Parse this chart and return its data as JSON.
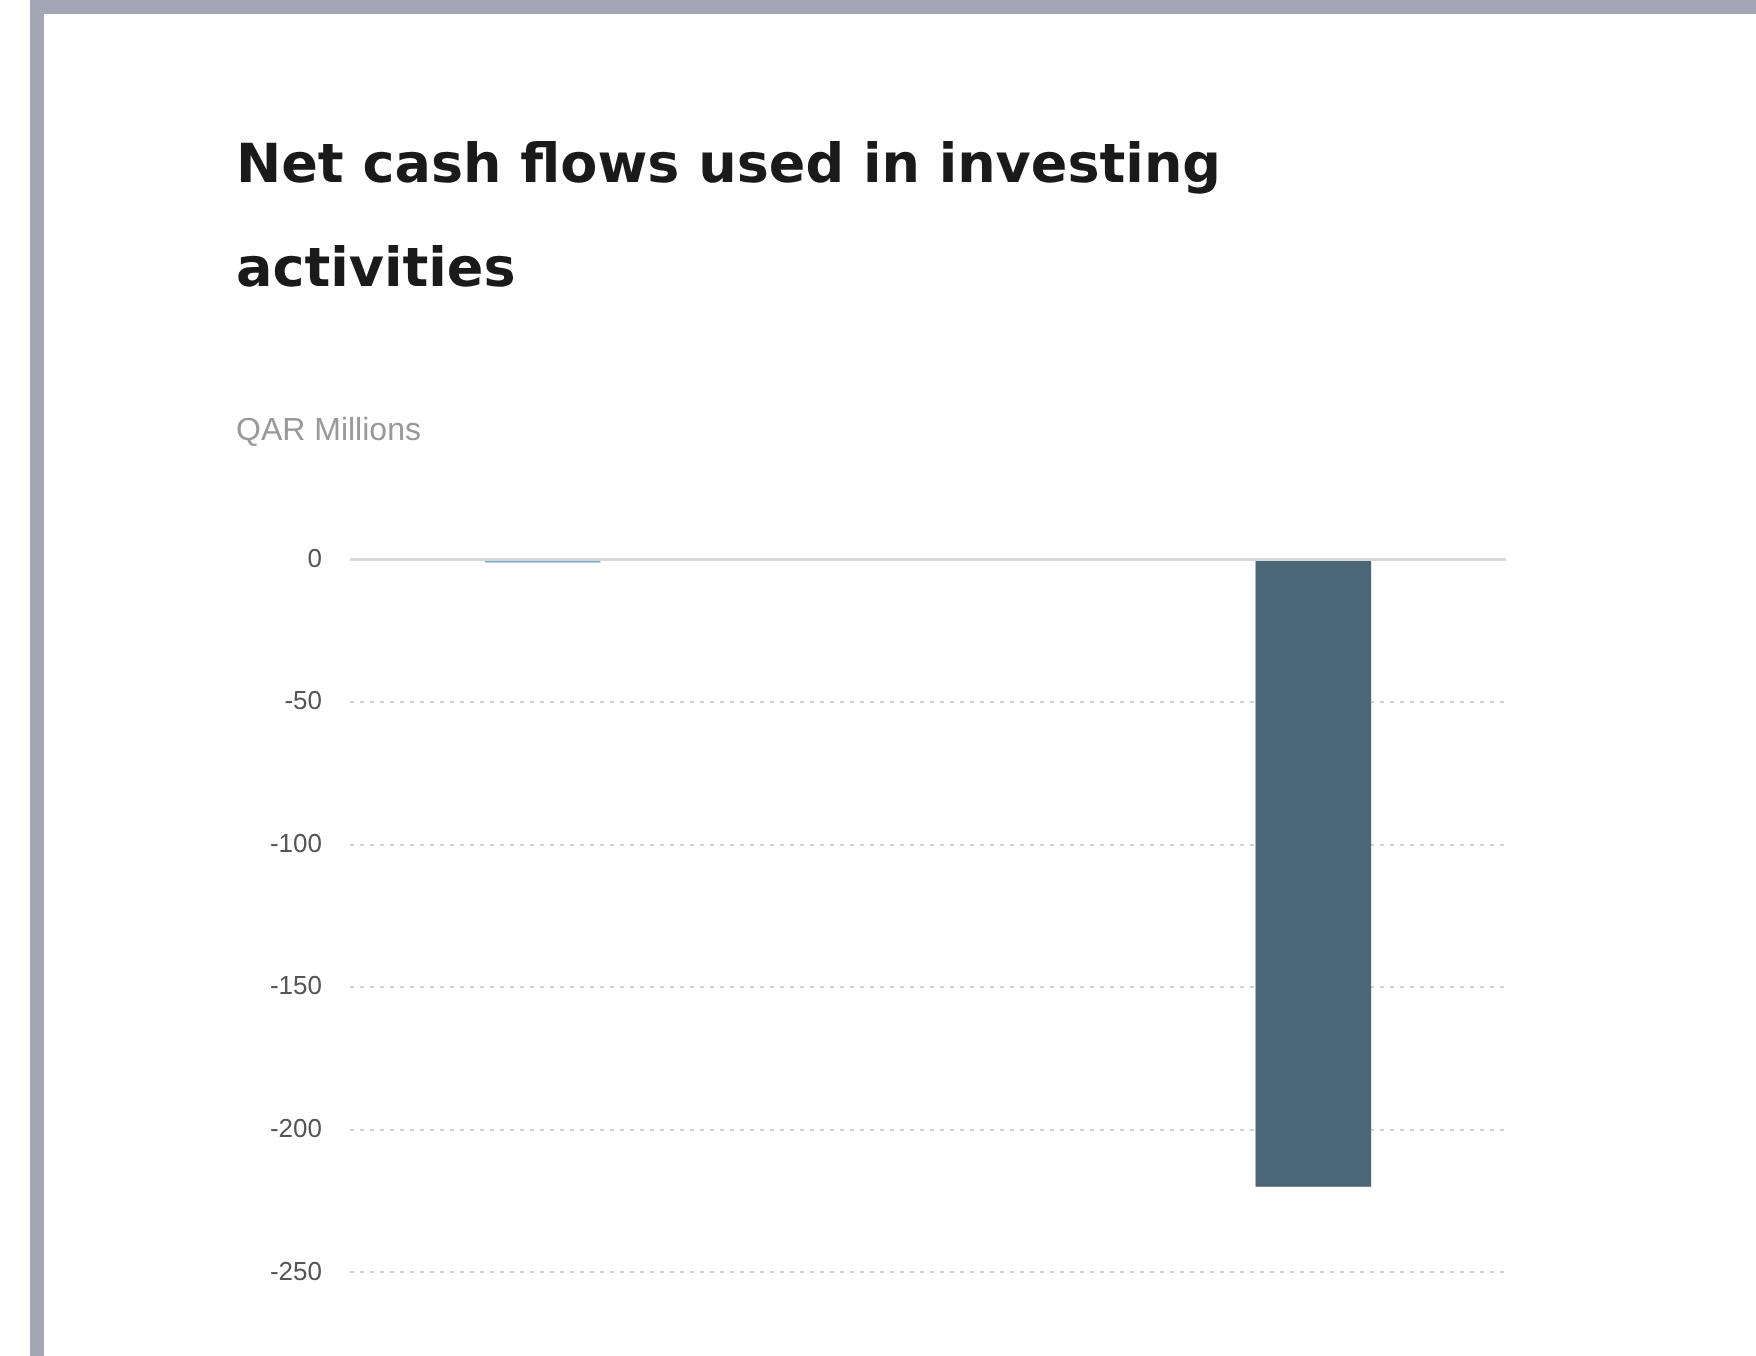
{
  "chart_data": {
    "type": "bar",
    "title": "Net cash flows used in investing activities",
    "ylabel": "QAR Millions",
    "categories": [
      null,
      null,
      null
    ],
    "values": [
      -1,
      null,
      -220
    ],
    "colors": [
      "#6aaed6",
      "#4d6b7c",
      "#4a6677"
    ],
    "ylim": [
      -250,
      0
    ],
    "yticks": [
      0,
      -50,
      -100,
      -150,
      -200,
      -250
    ],
    "grid": "y",
    "legend": false
  }
}
